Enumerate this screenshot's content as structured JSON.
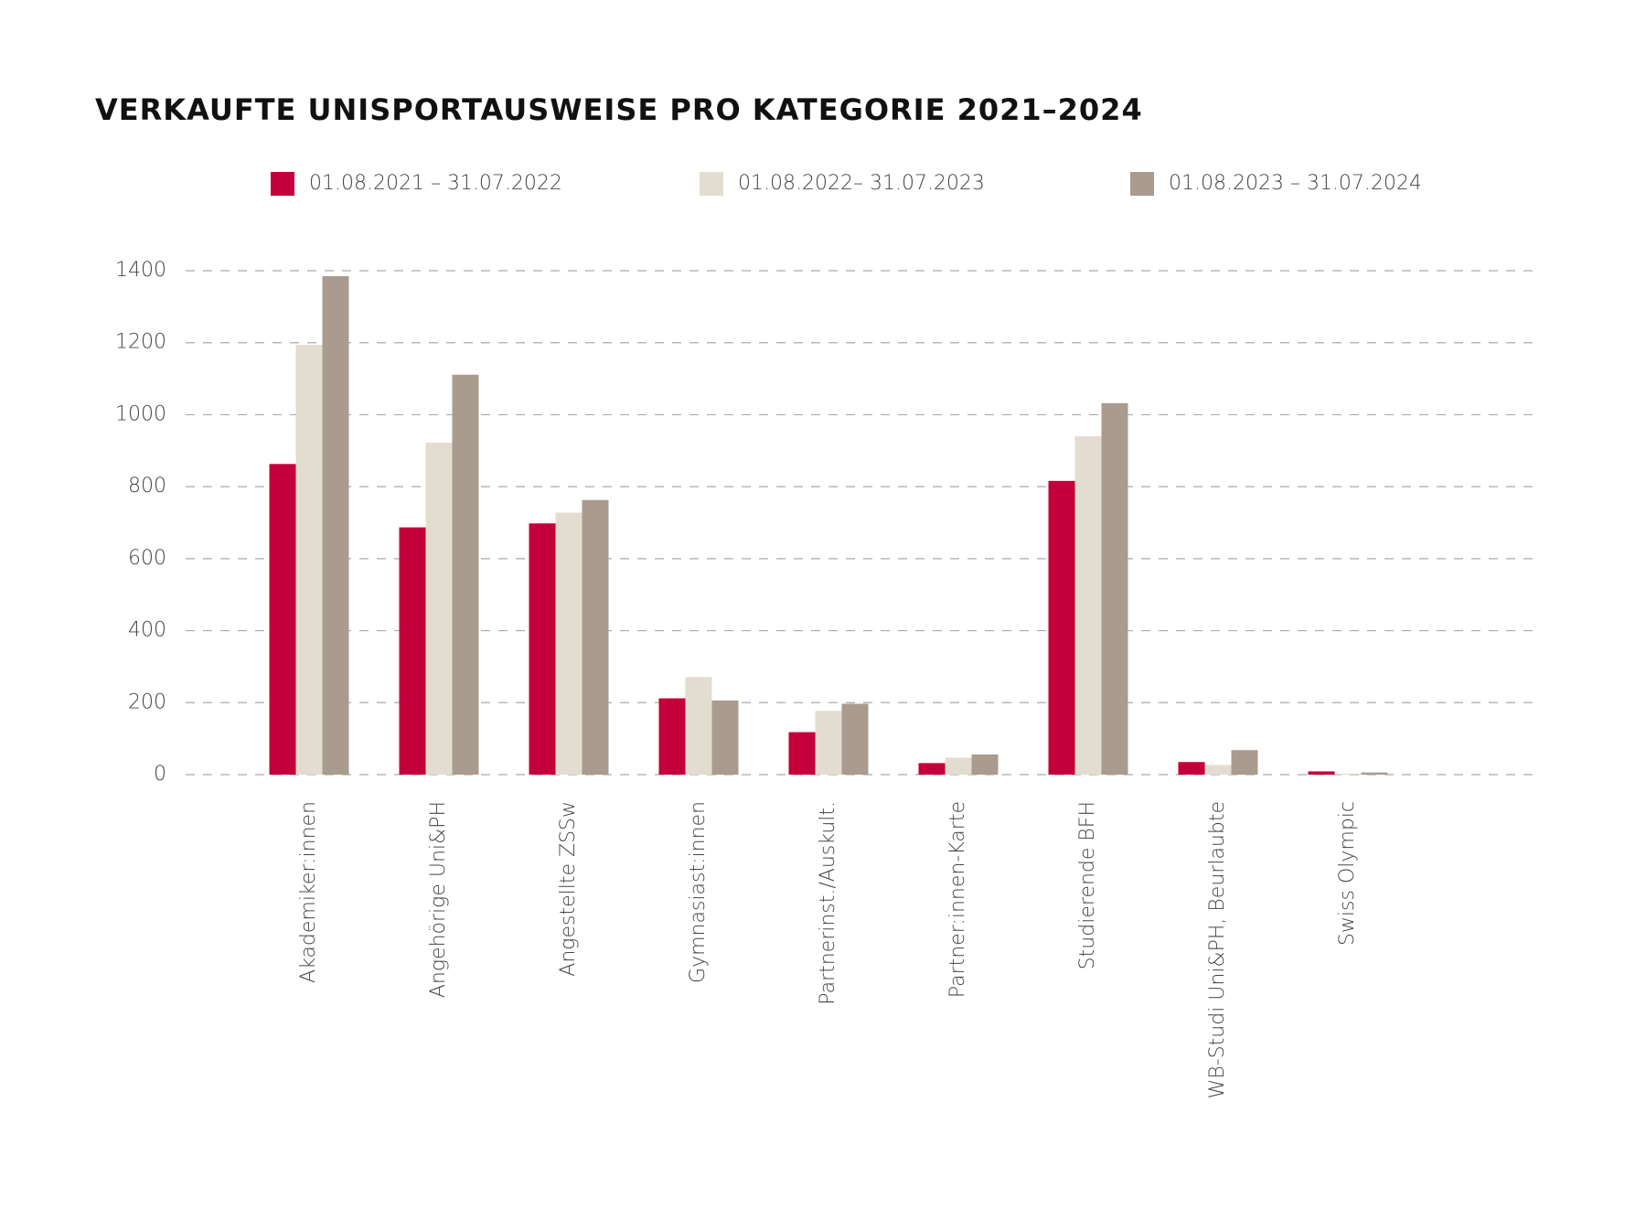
{
  "chart_data": {
    "type": "bar",
    "title": "VERKAUFTE UNISPORTAUSWEISE PRO KATEGORIE 2021–2024",
    "categories": [
      "Akademiker:innen",
      "Angehörige Uni&PH",
      "Angestellte ZSSw",
      "Gymnasiast:innen",
      "Partnerinst./Auskult.",
      "Partner:innen-Karte",
      "Studierende BFH",
      "WB-Studi Uni&PH, Beurlaubte",
      "Swiss Olympic"
    ],
    "series": [
      {
        "name": "01.08.2021 – 31.07.2022",
        "color": "#c4003a",
        "values": [
          863,
          687,
          698,
          212,
          118,
          32,
          816,
          35,
          9
        ]
      },
      {
        "name": "01.08.2022– 31.07.2023",
        "color": "#e2ddd0",
        "values": [
          1194,
          922,
          728,
          271,
          177,
          47,
          940,
          27,
          3
        ]
      },
      {
        "name": "01.08.2023 – 31.07.2024",
        "color": "#a99b8e",
        "values": [
          1385,
          1111,
          763,
          206,
          197,
          56,
          1032,
          68,
          6
        ]
      }
    ],
    "ylim": [
      0,
      1400
    ],
    "yticks": [
      0,
      200,
      400,
      600,
      800,
      1000,
      1200,
      1400
    ],
    "grid": true
  }
}
